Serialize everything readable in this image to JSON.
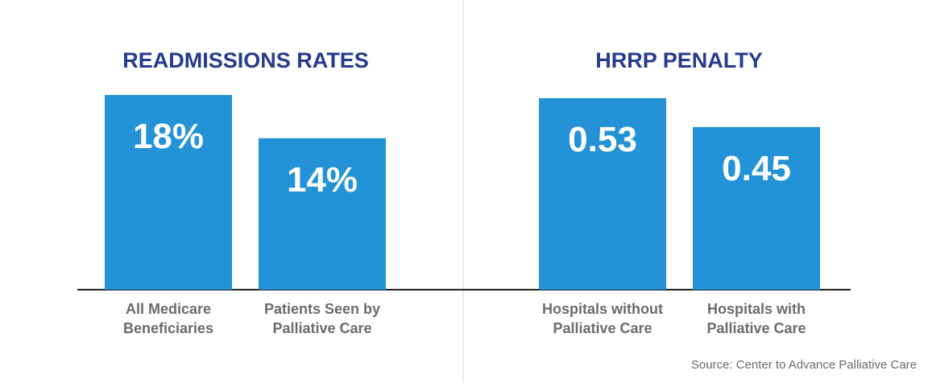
{
  "chart_data": [
    {
      "type": "bar",
      "title": "READMISSIONS RATES",
      "categories": [
        [
          "All Medicare",
          "Beneficiaries"
        ],
        [
          "Patients Seen by",
          "Palliative Care"
        ]
      ],
      "values": [
        18,
        14
      ],
      "value_labels": [
        "18%",
        "14%"
      ],
      "ylim": [
        0,
        20
      ]
    },
    {
      "type": "bar",
      "title": "HRRP PENALTY",
      "categories": [
        [
          "Hospitals without",
          "Palliative Care"
        ],
        [
          "Hospitals with",
          "Palliative Care"
        ]
      ],
      "values": [
        0.53,
        0.45
      ],
      "value_labels": [
        "0.53",
        "0.45"
      ],
      "ylim": [
        0,
        0.6
      ]
    }
  ],
  "source": "Source: Center to Advance Palliative Care",
  "colors": {
    "bar": "#2392D6",
    "title": "#253B8E",
    "category_label": "#6B6B6B",
    "value_label": "#FFFFFF",
    "axis": "#222222",
    "divider": "#D9D9D9",
    "source": "#6B6B6B"
  }
}
